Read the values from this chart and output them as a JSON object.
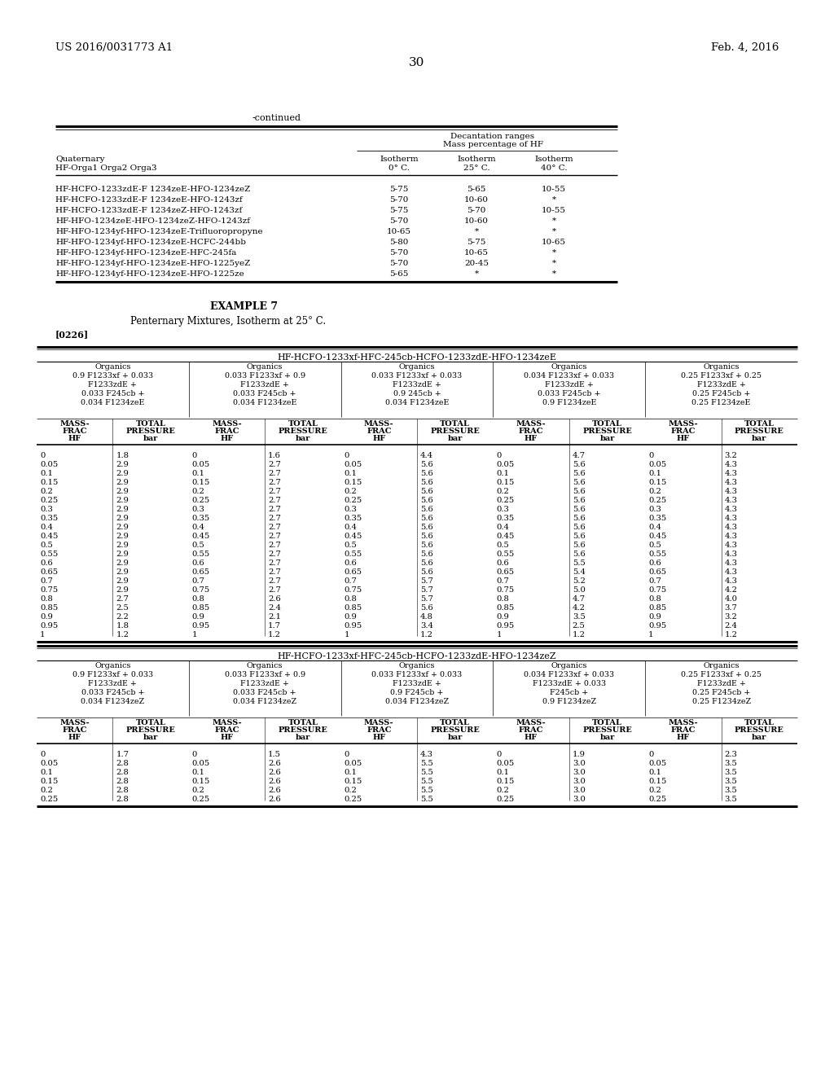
{
  "page_number": "30",
  "patent_left": "US 2016/0031773 A1",
  "patent_right": "Feb. 4, 2016",
  "continued_label": "-continued",
  "top_table_rows": [
    [
      "HF-HCFO-1233zdE-F 1234zeE-HFO-1234zeZ",
      "5-75",
      "5-65",
      "10-55"
    ],
    [
      "HF-HCFO-1233zdE-F 1234zeE-HFO-1243zf",
      "5-70",
      "10-60",
      "*"
    ],
    [
      "HF-HCFO-1233zdE-F 1234zeZ-HFO-1243zf",
      "5-75",
      "5-70",
      "10-55"
    ],
    [
      "HF-HFO-1234zeE-HFO-1234zeZ-HFO-1243zf",
      "5-70",
      "10-60",
      "*"
    ],
    [
      "HF-HFO-1234yf-HFO-1234zeE-Trifluoropropyne",
      "10-65",
      "*",
      "*"
    ],
    [
      "HF-HFO-1234yf-HFO-1234zeE-HCFC-244bb",
      "5-80",
      "5-75",
      "10-65"
    ],
    [
      "HF-HFO-1234yf-HFO-1234zeE-HFC-245fa",
      "5-70",
      "10-65",
      "*"
    ],
    [
      "HF-HFO-1234yf-HFO-1234zeE-HFO-1225yeZ",
      "5-70",
      "20-45",
      "*"
    ],
    [
      "HF-HFO-1234yf-HFO-1234zeE-HFO-1225ze",
      "5-65",
      "*",
      "*"
    ]
  ],
  "example_title": "EXAMPLE 7",
  "example_subtitle": "Penternary Mixtures, Isotherm at 25° C.",
  "example_ref": "[0226]",
  "table1_title": "HF-HCFO-1233xf-HFC-245cb-HCFO-1233zdE-HFO-1234zeE",
  "table1_organics": [
    [
      "Organics",
      "0.9 F1233xf + 0.033",
      "F1233zdE +",
      "0.033 F245cb +",
      "0.034 F1234zeE"
    ],
    [
      "Organics",
      "0.033 F1233xf + 0.9",
      "F1233zdE +",
      "0.033 F245cb +",
      "0.034 F1234zeE"
    ],
    [
      "Organics",
      "0.033 F1233xf + 0.033",
      "F1233zdE +",
      "0.9 245cb +",
      "0.034 F1234zeE"
    ],
    [
      "Organics",
      "0.034 F1233xf + 0.033",
      "F1233zdE +",
      "0.033 F245cb +",
      "0.9 F1234zeE"
    ],
    [
      "Organics",
      "0.25 F1233xf + 0.25",
      "F1233zdE +",
      "0.25 F245cb +",
      "0.25 F1234zeE"
    ]
  ],
  "table1_data": [
    [
      [
        "0",
        "1.8"
      ],
      [
        "0",
        "1.6"
      ],
      [
        "0",
        "4.4"
      ],
      [
        "0",
        "4.7"
      ],
      [
        "0",
        "3.2"
      ]
    ],
    [
      [
        "0.05",
        "2.9"
      ],
      [
        "0.05",
        "2.7"
      ],
      [
        "0.05",
        "5.6"
      ],
      [
        "0.05",
        "5.6"
      ],
      [
        "0.05",
        "4.3"
      ]
    ],
    [
      [
        "0.1",
        "2.9"
      ],
      [
        "0.1",
        "2.7"
      ],
      [
        "0.1",
        "5.6"
      ],
      [
        "0.1",
        "5.6"
      ],
      [
        "0.1",
        "4.3"
      ]
    ],
    [
      [
        "0.15",
        "2.9"
      ],
      [
        "0.15",
        "2.7"
      ],
      [
        "0.15",
        "5.6"
      ],
      [
        "0.15",
        "5.6"
      ],
      [
        "0.15",
        "4.3"
      ]
    ],
    [
      [
        "0.2",
        "2.9"
      ],
      [
        "0.2",
        "2.7"
      ],
      [
        "0.2",
        "5.6"
      ],
      [
        "0.2",
        "5.6"
      ],
      [
        "0.2",
        "4.3"
      ]
    ],
    [
      [
        "0.25",
        "2.9"
      ],
      [
        "0.25",
        "2.7"
      ],
      [
        "0.25",
        "5.6"
      ],
      [
        "0.25",
        "5.6"
      ],
      [
        "0.25",
        "4.3"
      ]
    ],
    [
      [
        "0.3",
        "2.9"
      ],
      [
        "0.3",
        "2.7"
      ],
      [
        "0.3",
        "5.6"
      ],
      [
        "0.3",
        "5.6"
      ],
      [
        "0.3",
        "4.3"
      ]
    ],
    [
      [
        "0.35",
        "2.9"
      ],
      [
        "0.35",
        "2.7"
      ],
      [
        "0.35",
        "5.6"
      ],
      [
        "0.35",
        "5.6"
      ],
      [
        "0.35",
        "4.3"
      ]
    ],
    [
      [
        "0.4",
        "2.9"
      ],
      [
        "0.4",
        "2.7"
      ],
      [
        "0.4",
        "5.6"
      ],
      [
        "0.4",
        "5.6"
      ],
      [
        "0.4",
        "4.3"
      ]
    ],
    [
      [
        "0.45",
        "2.9"
      ],
      [
        "0.45",
        "2.7"
      ],
      [
        "0.45",
        "5.6"
      ],
      [
        "0.45",
        "5.6"
      ],
      [
        "0.45",
        "4.3"
      ]
    ],
    [
      [
        "0.5",
        "2.9"
      ],
      [
        "0.5",
        "2.7"
      ],
      [
        "0.5",
        "5.6"
      ],
      [
        "0.5",
        "5.6"
      ],
      [
        "0.5",
        "4.3"
      ]
    ],
    [
      [
        "0.55",
        "2.9"
      ],
      [
        "0.55",
        "2.7"
      ],
      [
        "0.55",
        "5.6"
      ],
      [
        "0.55",
        "5.6"
      ],
      [
        "0.55",
        "4.3"
      ]
    ],
    [
      [
        "0.6",
        "2.9"
      ],
      [
        "0.6",
        "2.7"
      ],
      [
        "0.6",
        "5.6"
      ],
      [
        "0.6",
        "5.5"
      ],
      [
        "0.6",
        "4.3"
      ]
    ],
    [
      [
        "0.65",
        "2.9"
      ],
      [
        "0.65",
        "2.7"
      ],
      [
        "0.65",
        "5.6"
      ],
      [
        "0.65",
        "5.4"
      ],
      [
        "0.65",
        "4.3"
      ]
    ],
    [
      [
        "0.7",
        "2.9"
      ],
      [
        "0.7",
        "2.7"
      ],
      [
        "0.7",
        "5.7"
      ],
      [
        "0.7",
        "5.2"
      ],
      [
        "0.7",
        "4.3"
      ]
    ],
    [
      [
        "0.75",
        "2.9"
      ],
      [
        "0.75",
        "2.7"
      ],
      [
        "0.75",
        "5.7"
      ],
      [
        "0.75",
        "5.0"
      ],
      [
        "0.75",
        "4.2"
      ]
    ],
    [
      [
        "0.8",
        "2.7"
      ],
      [
        "0.8",
        "2.6"
      ],
      [
        "0.8",
        "5.7"
      ],
      [
        "0.8",
        "4.7"
      ],
      [
        "0.8",
        "4.0"
      ]
    ],
    [
      [
        "0.85",
        "2.5"
      ],
      [
        "0.85",
        "2.4"
      ],
      [
        "0.85",
        "5.6"
      ],
      [
        "0.85",
        "4.2"
      ],
      [
        "0.85",
        "3.7"
      ]
    ],
    [
      [
        "0.9",
        "2.2"
      ],
      [
        "0.9",
        "2.1"
      ],
      [
        "0.9",
        "4.8"
      ],
      [
        "0.9",
        "3.5"
      ],
      [
        "0.9",
        "3.2"
      ]
    ],
    [
      [
        "0.95",
        "1.8"
      ],
      [
        "0.95",
        "1.7"
      ],
      [
        "0.95",
        "3.4"
      ],
      [
        "0.95",
        "2.5"
      ],
      [
        "0.95",
        "2.4"
      ]
    ],
    [
      [
        "1",
        "1.2"
      ],
      [
        "1",
        "1.2"
      ],
      [
        "1",
        "1.2"
      ],
      [
        "1",
        "1.2"
      ],
      [
        "1",
        "1.2"
      ]
    ]
  ],
  "table2_title": "HF-HCFO-1233xf-HFC-245cb-HCFO-1233zdE-HFO-1234zeZ",
  "table2_organics": [
    [
      "Organics",
      "0.9 F1233xf + 0.033",
      "F1233zdE +",
      "0.033 F245cb +",
      "0.034 F1234zeZ"
    ],
    [
      "Organics",
      "0.033 F1233xf + 0.9",
      "F1233zdE +",
      "0.033 F245cb +",
      "0.034 F1234zeZ"
    ],
    [
      "Organics",
      "0.033 F1233xf + 0.033",
      "F1233zdE +",
      "0.9 F245cb +",
      "0.034 F1234zeZ"
    ],
    [
      "Organics",
      "0.034 F1233xf + 0.033",
      "F1233zdE + 0.033",
      "F245cb +",
      "0.9 F1234zeZ"
    ],
    [
      "Organics",
      "0.25 F1233xf + 0.25",
      "F1233zdE +",
      "0.25 F245cb +",
      "0.25 F1234zeZ"
    ]
  ],
  "table2_data": [
    [
      [
        "0",
        "1.7"
      ],
      [
        "0",
        "1.5"
      ],
      [
        "0",
        "4.3"
      ],
      [
        "0",
        "1.9"
      ],
      [
        "0",
        "2.3"
      ]
    ],
    [
      [
        "0.05",
        "2.8"
      ],
      [
        "0.05",
        "2.6"
      ],
      [
        "0.05",
        "5.5"
      ],
      [
        "0.05",
        "3.0"
      ],
      [
        "0.05",
        "3.5"
      ]
    ],
    [
      [
        "0.1",
        "2.8"
      ],
      [
        "0.1",
        "2.6"
      ],
      [
        "0.1",
        "5.5"
      ],
      [
        "0.1",
        "3.0"
      ],
      [
        "0.1",
        "3.5"
      ]
    ],
    [
      [
        "0.15",
        "2.8"
      ],
      [
        "0.15",
        "2.6"
      ],
      [
        "0.15",
        "5.5"
      ],
      [
        "0.15",
        "3.0"
      ],
      [
        "0.15",
        "3.5"
      ]
    ],
    [
      [
        "0.2",
        "2.8"
      ],
      [
        "0.2",
        "2.6"
      ],
      [
        "0.2",
        "5.5"
      ],
      [
        "0.2",
        "3.0"
      ],
      [
        "0.2",
        "3.5"
      ]
    ],
    [
      [
        "0.25",
        "2.8"
      ],
      [
        "0.25",
        "2.6"
      ],
      [
        "0.25",
        "5.5"
      ],
      [
        "0.25",
        "3.0"
      ],
      [
        "0.25",
        "3.5"
      ]
    ]
  ]
}
